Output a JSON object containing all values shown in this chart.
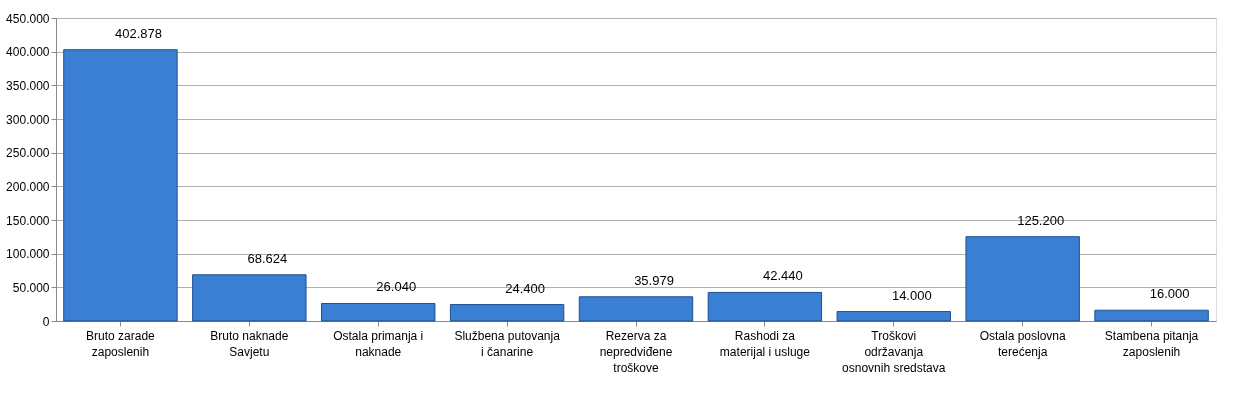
{
  "chart_data": {
    "type": "bar",
    "categories": [
      "Bruto zarade zaposlenih",
      "Bruto naknade Savjetu",
      "Ostala primanja i naknade",
      "Službena putovanja i čanarine",
      "Rezerva za nepredviđene troškove",
      "Rashodi za materijal i usluge",
      "Troškovi održavanja osnovnih sredstava",
      "Ostala poslovna terećenja",
      "Stambena pitanja zaposlenih"
    ],
    "values": [
      402878,
      68624,
      26040,
      24400,
      35979,
      42440,
      14000,
      125200,
      16000
    ],
    "value_labels": [
      "402.878",
      "68.624",
      "26.040",
      "24.400",
      "35.979",
      "42.440",
      "14.000",
      "125.200",
      "16.000"
    ],
    "color": "#3b7fd4",
    "ylim": [
      0,
      450000
    ],
    "yticks": [
      {
        "value": 0,
        "label": "0"
      },
      {
        "value": 50000,
        "label": "50.000"
      },
      {
        "value": 100000,
        "label": "100.000"
      },
      {
        "value": 150000,
        "label": "150.000"
      },
      {
        "value": 200000,
        "label": "200.000"
      },
      {
        "value": 250000,
        "label": "250.000"
      },
      {
        "value": 300000,
        "label": "300.000"
      },
      {
        "value": 350000,
        "label": "350.000"
      },
      {
        "value": 400000,
        "label": "400.000"
      },
      {
        "value": 450000,
        "label": "450.000"
      }
    ],
    "grid": "y"
  }
}
